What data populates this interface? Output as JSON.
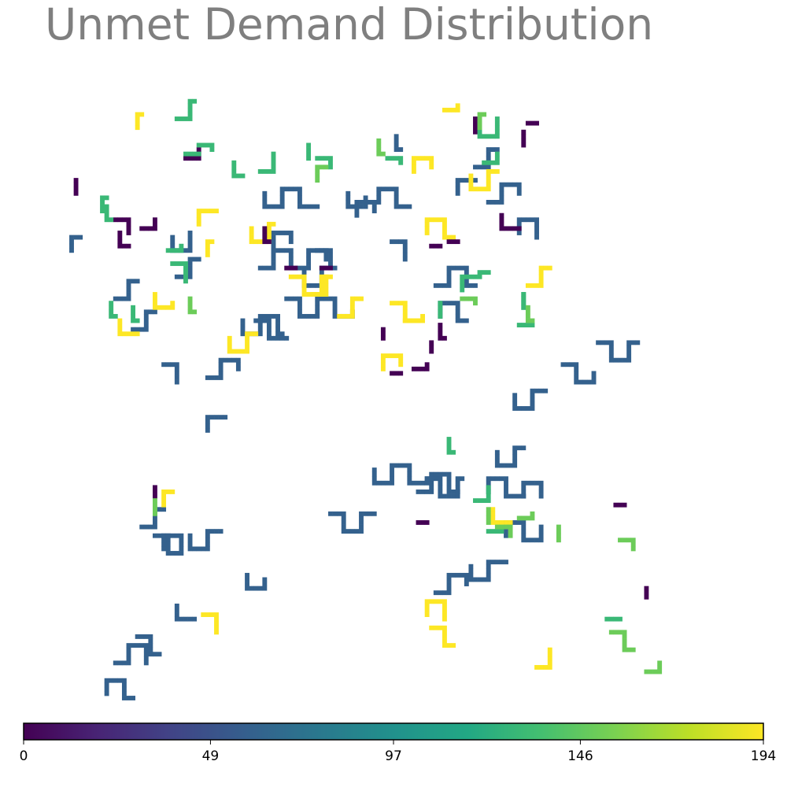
{
  "chart_data": {
    "type": "heatmap",
    "title": "Unmet Demand Distribution",
    "colormap": "viridis",
    "color_range": [
      0,
      194
    ],
    "colorbar": {
      "tick_labels": [
        "0",
        "49",
        "97",
        "146",
        "194"
      ],
      "ticks": [
        0,
        49,
        97,
        146,
        194
      ]
    },
    "grid": false,
    "grid_size": 165,
    "cell_groups": [
      {
        "value": 60,
        "segments": [
          [
            53,
            60,
            21
          ],
          [
            57,
            48,
            30
          ],
          [
            63,
            55,
            29
          ],
          [
            73,
            104,
            19
          ],
          [
            83,
            94,
            25
          ],
          [
            95,
            96,
            17
          ],
          [
            93,
            99,
            18
          ],
          [
            97,
            122,
            14
          ],
          [
            105,
            116,
            16
          ],
          [
            113,
            109,
            19
          ],
          [
            117,
            100,
            11
          ],
          [
            109,
            99,
            16
          ],
          [
            111,
            90,
            14
          ],
          [
            115,
            77,
            15
          ],
          [
            126,
            70,
            14
          ],
          [
            134,
            65,
            18
          ],
          [
            45,
            73,
            14
          ],
          [
            45,
            85,
            8
          ],
          [
            33,
            109,
            10
          ],
          [
            30,
            107,
            10
          ],
          [
            35,
            112,
            12
          ],
          [
            54,
            118,
            10
          ],
          [
            38,
            125,
            8
          ],
          [
            29,
            132,
            10
          ],
          [
            22,
            145,
            14
          ],
          [
            39,
            153,
            18
          ],
          [
            24,
            138,
            16
          ],
          [
            41,
            109,
            15
          ],
          [
            38,
            50,
            10
          ],
          [
            24,
            55,
            10
          ],
          [
            28,
            62,
            10
          ],
          [
            35,
            70,
            8
          ],
          [
            60,
            43,
            10
          ],
          [
            77,
            31,
            10
          ],
          [
            84,
            33,
            15
          ],
          [
            88,
            18,
            5
          ],
          [
            79,
            36,
            10
          ],
          [
            97,
            52,
            18
          ],
          [
            98,
            59,
            14
          ],
          [
            116,
            40,
            12
          ],
          [
            109,
            33,
            14
          ],
          [
            106,
            25,
            10
          ],
          [
            102,
            31,
            8
          ],
          [
            87,
            42,
            8
          ],
          [
            70,
            44,
            9
          ],
          [
            67,
            49,
            14
          ],
          [
            56,
            60,
            12
          ],
          [
            37,
            41,
            12
          ],
          [
            58,
            31,
            24
          ],
          [
            14,
            44,
            6
          ]
        ]
      },
      {
        "value": 194,
        "segments": [
          [
            95,
            40,
            14
          ],
          [
            105,
            27,
            14
          ],
          [
            29,
            16,
            5
          ],
          [
            55,
            39,
            13
          ],
          [
            64,
            50,
            18
          ],
          [
            87,
            56,
            13
          ],
          [
            33,
            54,
            9
          ],
          [
            50,
            64,
            14
          ],
          [
            25,
            60,
            8
          ],
          [
            92,
            26,
            10
          ],
          [
            35,
            102,
            6
          ],
          [
            69,
            54,
            8
          ],
          [
            75,
            59,
            10
          ],
          [
            45,
            45,
            5
          ],
          [
            43,
            38,
            8
          ],
          [
            44,
            127,
            8
          ],
          [
            96,
            130,
            10
          ],
          [
            120,
            139,
            8
          ],
          [
            90,
            60,
            4
          ],
          [
            85,
            71,
            10
          ],
          [
            110,
            103,
            8
          ],
          [
            95,
            127,
            12
          ],
          [
            118,
            52,
            10
          ],
          [
            99,
            12,
            5
          ]
        ]
      },
      {
        "value": 0,
        "segments": [
          [
            25,
            40,
            6
          ],
          [
            24,
            37,
            7
          ],
          [
            15,
            28,
            4
          ],
          [
            30,
            39,
            6
          ],
          [
            58,
            39,
            5
          ],
          [
            40,
            23,
            6
          ],
          [
            100,
            42,
            3
          ],
          [
            118,
            15,
            3
          ],
          [
            113,
            39,
            4
          ],
          [
            96,
            43,
            3
          ],
          [
            85,
            62,
            3
          ],
          [
            117,
            17,
            4
          ],
          [
            112,
            39,
            4
          ],
          [
            92,
            71,
            5
          ],
          [
            98,
            61,
            5
          ],
          [
            71,
            48,
            3
          ],
          [
            106,
            17,
            4
          ],
          [
            63,
            48,
            3
          ],
          [
            33,
            98,
            3
          ],
          [
            87,
            72,
            3
          ],
          [
            96,
            65,
            3
          ],
          [
            93,
            106,
            3
          ],
          [
            138,
            102,
            3
          ],
          [
            145,
            123,
            3
          ]
        ]
      },
      {
        "value": 130,
        "segments": [
          [
            38,
            14,
            9
          ],
          [
            43,
            20,
            5
          ],
          [
            40,
            22,
            4
          ],
          [
            107,
            15,
            12
          ],
          [
            108,
            24,
            6
          ],
          [
            86,
            23,
            5
          ],
          [
            51,
            24,
            6
          ],
          [
            57,
            26,
            8
          ],
          [
            68,
            23,
            4
          ],
          [
            22,
            34,
            5
          ],
          [
            23,
            56,
            5
          ],
          [
            21,
            35,
            5
          ],
          [
            37,
            47,
            8
          ],
          [
            106,
            101,
            7
          ],
          [
            100,
            87,
            5
          ],
          [
            103,
            53,
            8
          ],
          [
            36,
            44,
            5
          ],
          [
            70,
            23,
            6
          ],
          [
            117,
            54,
            4
          ],
          [
            98,
            56,
            4
          ],
          [
            107,
            49,
            3
          ],
          [
            117,
            57,
            4
          ],
          [
            136,
            128,
            4
          ],
          [
            109,
            108,
            4
          ],
          [
            28,
            57,
            5
          ],
          [
            116,
            61,
            4
          ]
        ]
      },
      {
        "value": 150,
        "segments": [
          [
            107,
            16,
            5
          ],
          [
            70,
            28,
            6
          ],
          [
            111,
            107,
            6
          ],
          [
            139,
            110,
            6
          ],
          [
            137,
            131,
            10
          ],
          [
            145,
            140,
            6
          ],
          [
            84,
            19,
            5
          ],
          [
            116,
            105,
            5
          ],
          [
            125,
            110,
            4
          ],
          [
            41,
            55,
            5
          ],
          [
            103,
            55,
            5
          ],
          [
            33,
            101,
            4
          ],
          [
            71,
            160,
            4
          ],
          [
            109,
            103,
            4
          ],
          [
            118,
            57,
            5
          ]
        ]
      }
    ]
  }
}
